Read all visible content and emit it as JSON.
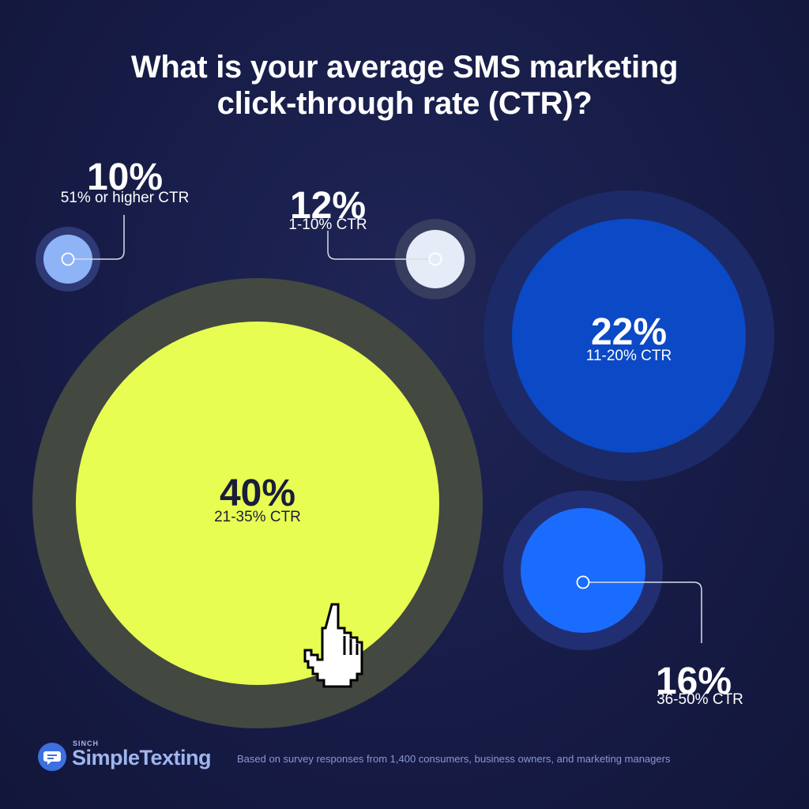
{
  "title_lines": [
    "What is your average SMS marketing",
    "click-through rate (CTR)?"
  ],
  "chart_data": {
    "type": "bubble",
    "unit": "%",
    "slices": [
      {
        "label": "21-35% CTR",
        "value": 40,
        "display": "40%",
        "color": "#e8fd52",
        "ring": "#434841",
        "text_color": "#1a1d3a"
      },
      {
        "label": "11-20% CTR",
        "value": 22,
        "display": "22%",
        "color": "#0b49c6",
        "ring": "#1c2a68",
        "text_color": "#ffffff"
      },
      {
        "label": "36-50% CTR",
        "value": 16,
        "display": "16%",
        "color": "#1a6cff",
        "ring": "#212f72",
        "text_color": "#ffffff"
      },
      {
        "label": "1-10% CTR",
        "value": 12,
        "display": "12%",
        "color": "#e6ebf8",
        "ring": "#363d5e",
        "text_color": "#ffffff"
      },
      {
        "label": "51% or higher CTR",
        "value": 10,
        "display": "10%",
        "color": "#8eb3f7",
        "ring": "#2e3976",
        "text_color": "#ffffff"
      }
    ],
    "connector_color": "#d9dcea"
  },
  "footer": {
    "brand_prefix": "SINCH",
    "brand_name": "SimpleTexting",
    "note": "Based on survey responses from 1,400 consumers, business owners, and marketing managers"
  },
  "icons": {
    "cursor": "hand-pointer-icon",
    "logo": "chat-bubble-icon"
  }
}
